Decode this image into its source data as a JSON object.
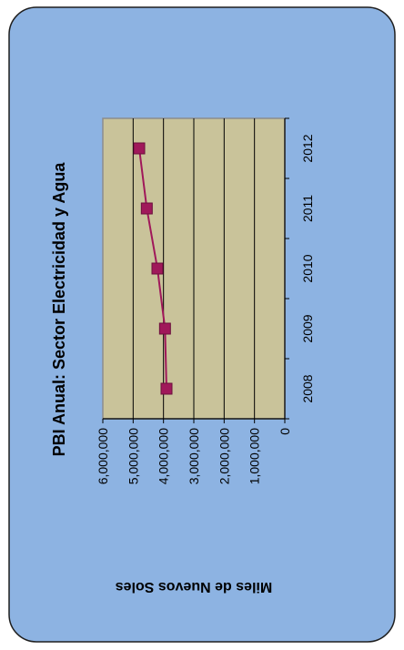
{
  "colors": {
    "frame_fill": "#8DB3E2",
    "frame_stroke": "#1F1F1F",
    "plot_fill": "#C9C39A",
    "plot_stroke": "#8C8C8C",
    "gridline": "#000000",
    "series": "#A0185A"
  },
  "chart_data": {
    "type": "line",
    "title": "PBI Anual: Sector Electricidad y Agua",
    "ylabel": "Miles de Nuevos Soles",
    "xlabel": "",
    "categories": [
      "2008",
      "2009",
      "2010",
      "2011",
      "2012"
    ],
    "series": [
      {
        "values": [
          3900000,
          3950000,
          4200000,
          4550000,
          4800000
        ]
      }
    ],
    "ylim": [
      0,
      6000000
    ],
    "yticks": [
      0,
      1000000,
      2000000,
      3000000,
      4000000,
      5000000,
      6000000
    ],
    "ytick_labels": [
      "0",
      "1,000,000",
      "2,000,000",
      "3,000,000",
      "4,000,000",
      "5,000,000",
      "6,000,000"
    ],
    "grid": true,
    "legend": "none",
    "orientation": "rotated-90-counterclockwise",
    "marker": "square"
  }
}
